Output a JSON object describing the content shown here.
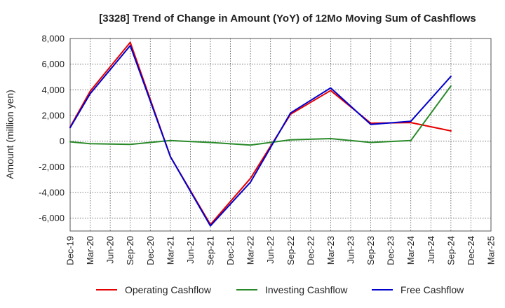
{
  "chart_data": {
    "type": "line",
    "title": "[3328]  Trend of Change in Amount (YoY) of 12Mo Moving Sum of Cashflows",
    "xlabel": "",
    "ylabel": "Amount (million yen)",
    "ylim": [
      -7000,
      8000
    ],
    "yticks": [
      8000,
      6000,
      4000,
      2000,
      0,
      -2000,
      -4000,
      -6000
    ],
    "ytick_labels": [
      "8,000",
      "6,000",
      "4,000",
      "2,000",
      "0",
      "-2,000",
      "-4,000",
      "-6,000"
    ],
    "categories": [
      "Dec-19",
      "Mar-20",
      "Jun-20",
      "Sep-20",
      "Dec-20",
      "Mar-21",
      "Jun-21",
      "Sep-21",
      "Dec-21",
      "Mar-22",
      "Jun-22",
      "Sep-22",
      "Dec-22",
      "Mar-23",
      "Jun-23",
      "Sep-23",
      "Dec-23",
      "Mar-24",
      "Jun-24",
      "Sep-24",
      "Dec-24",
      "Mar-25"
    ],
    "grid": true,
    "legend_position": "bottom",
    "series": [
      {
        "name": "Operating Cashflow",
        "color": "#e60000",
        "values": [
          1100,
          3900,
          null,
          7700,
          null,
          -1200,
          null,
          -6500,
          null,
          -2900,
          null,
          2100,
          null,
          3950,
          null,
          1400,
          null,
          1450,
          null,
          800,
          null,
          null
        ]
      },
      {
        "name": "Investing Cashflow",
        "color": "#2a8a2a",
        "values": [
          -50,
          -200,
          null,
          -250,
          null,
          50,
          null,
          -100,
          null,
          -300,
          null,
          100,
          null,
          200,
          null,
          -100,
          null,
          50,
          null,
          4300,
          null,
          null
        ]
      },
      {
        "name": "Free Cashflow",
        "color": "#0000cc",
        "values": [
          1050,
          3700,
          null,
          7450,
          null,
          -1200,
          null,
          -6600,
          null,
          -3200,
          null,
          2200,
          null,
          4150,
          null,
          1300,
          null,
          1550,
          null,
          5050,
          null,
          null
        ]
      }
    ]
  }
}
